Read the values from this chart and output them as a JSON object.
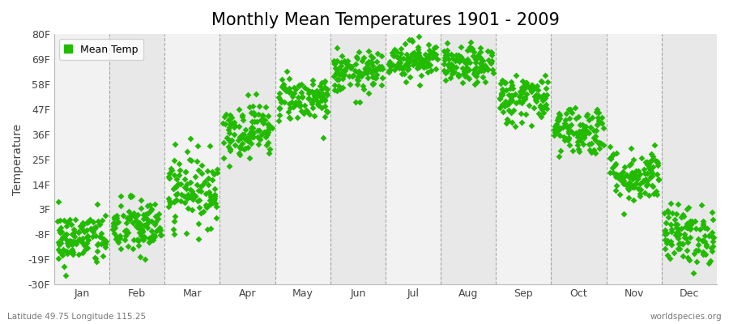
{
  "title": "Monthly Mean Temperatures 1901 - 2009",
  "ylabel": "Temperature",
  "yticks": [
    -30,
    -19,
    -8,
    3,
    14,
    25,
    36,
    47,
    58,
    69,
    80
  ],
  "ytick_labels": [
    "-30F",
    "-19F",
    "-8F",
    "3F",
    "14F",
    "25F",
    "36F",
    "47F",
    "58F",
    "69F",
    "80F"
  ],
  "ylim": [
    -30,
    80
  ],
  "months": [
    "Jan",
    "Feb",
    "Mar",
    "Apr",
    "May",
    "Jun",
    "Jul",
    "Aug",
    "Sep",
    "Oct",
    "Nov",
    "Dec"
  ],
  "marker_color": "#22bb00",
  "marker": "D",
  "marker_size": 4,
  "background_color": "#ffffff",
  "band_color_odd": "#f2f2f2",
  "band_color_even": "#e8e8e8",
  "grid_line_color": "#888888",
  "title_fontsize": 15,
  "axis_label_fontsize": 10,
  "tick_label_fontsize": 9,
  "legend_label": "Mean Temp",
  "footnote_left": "Latitude 49.75 Longitude 115.25",
  "footnote_right": "worldspecies.org",
  "n_years": 109,
  "temp_means_F": [
    -10.0,
    -5.0,
    12.0,
    38.0,
    52.0,
    63.0,
    69.0,
    66.0,
    52.0,
    38.0,
    18.0,
    -8.0
  ],
  "temp_stds_F": [
    6.0,
    6.5,
    8.0,
    6.0,
    5.0,
    4.5,
    4.0,
    4.0,
    5.5,
    5.5,
    6.0,
    6.5
  ]
}
